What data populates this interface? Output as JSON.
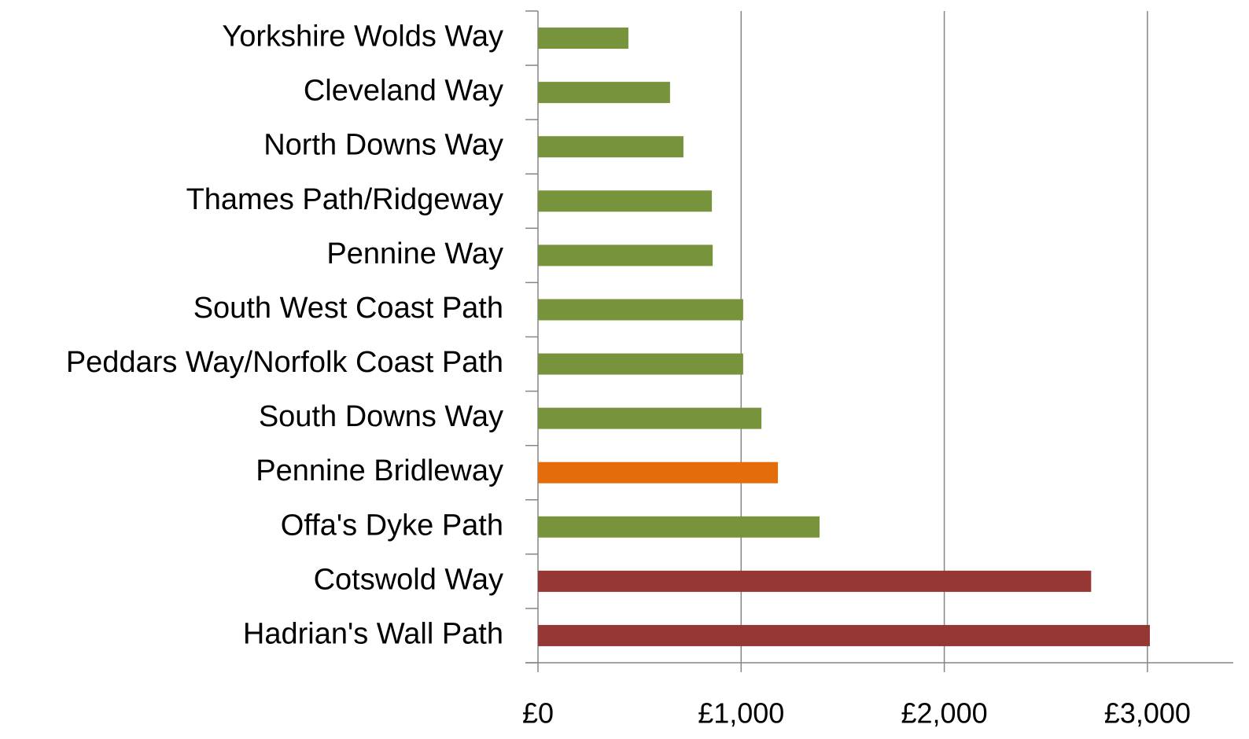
{
  "chart_data": {
    "type": "bar",
    "orientation": "horizontal",
    "categories": [
      "Yorkshire Wolds Way",
      "Cleveland Way",
      "North Downs Way",
      "Thames Path/Ridgeway",
      "Pennine Way",
      "South West Coast Path",
      "Peddars Way/Norfolk Coast Path",
      "South Downs Way",
      "Pennine Bridleway",
      "Offa's Dyke Path",
      "Cotswold Way",
      "Hadrian's Wall Path"
    ],
    "values": [
      445,
      650,
      716,
      856,
      860,
      1010,
      1010,
      1100,
      1181,
      1386,
      2723,
      3012
    ],
    "colors": [
      "#77933c",
      "#77933c",
      "#77933c",
      "#77933c",
      "#77933c",
      "#77933c",
      "#77933c",
      "#77933c",
      "#e46c0a",
      "#77933c",
      "#953735",
      "#953735"
    ],
    "xlim": [
      0,
      3500
    ],
    "xticks": [
      {
        "value": 0,
        "label": "£0"
      },
      {
        "value": 1000,
        "label": "£1,000"
      },
      {
        "value": 2000,
        "label": "£2,000"
      },
      {
        "value": 3000,
        "label": "£3,000"
      }
    ],
    "grid": true
  }
}
